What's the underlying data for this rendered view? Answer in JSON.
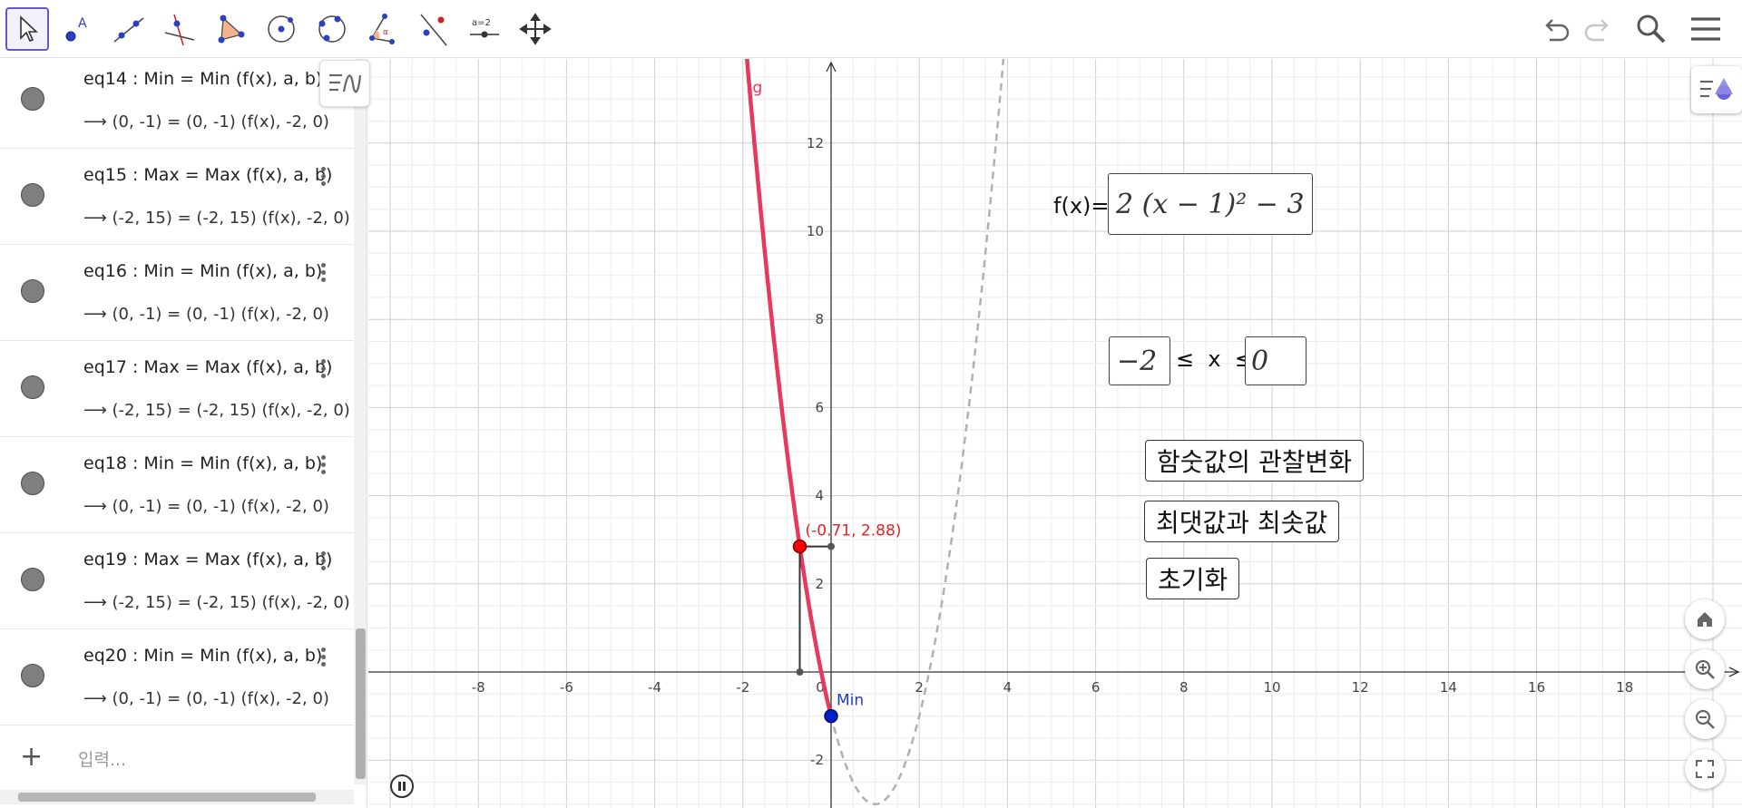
{
  "toolbar": {
    "tools": [
      "move-tool",
      "point-tool",
      "line-tool",
      "perpendicular-tool",
      "polygon-tool",
      "circle-tool",
      "ellipse-tool",
      "angle-tool",
      "reflect-tool",
      "slider-tool",
      "move-graphics-tool"
    ],
    "slider_label": "a=2",
    "active_tool": "move-tool",
    "right_icons": [
      "undo-icon",
      "redo-icon",
      "search-icon",
      "menu-icon"
    ]
  },
  "algebra": {
    "rows": [
      {
        "def": "eq14 : Min  =  Min (f(x), a, b)",
        "val": "⟶ (0, -1)  =  (0, -1) (f(x), -2, 0)"
      },
      {
        "def": "eq15 : Max  =  Max (f(x), a, b)",
        "val": "⟶ (-2, 15)  =  (-2, 15) (f(x), -2, 0)"
      },
      {
        "def": "eq16 : Min  =  Min (f(x), a, b)",
        "val": "⟶ (0, -1)  =  (0, -1) (f(x), -2, 0)"
      },
      {
        "def": "eq17 : Max  =  Max (f(x), a, b)",
        "val": "⟶ (-2, 15)  =  (-2, 15) (f(x), -2, 0)"
      },
      {
        "def": "eq18 : Min  =  Min (f(x), a, b)",
        "val": "⟶ (0, -1)  =  (0, -1) (f(x), -2, 0)"
      },
      {
        "def": "eq19 : Max  =  Max (f(x), a, b)",
        "val": "⟶ (-2, 15)  =  (-2, 15) (f(x), -2, 0)"
      },
      {
        "def": "eq20 : Min  =  Min (f(x), a, b)",
        "val": "⟶ (0, -1)  =  (0, -1) (f(x), -2, 0)"
      }
    ],
    "input_placeholder": "입력..."
  },
  "graphics": {
    "fx_label": "f(x)=",
    "fx_expr": "2 (x − 1)² − 3",
    "lower_bound": "−2",
    "ineq_label": "≤  x  ≤",
    "upper_bound": "0",
    "button_observe": "함숫값의 관찰변화",
    "button_maxmin": "최댓값과 최솟값",
    "button_reset": "초기화",
    "curve_label": "g",
    "point_label": "(-0.71, 2.88)",
    "min_label": "Min",
    "x_ticks": [
      "-8",
      "-6",
      "-4",
      "-2",
      "0",
      "2",
      "4",
      "6",
      "8",
      "10",
      "12",
      "14",
      "16",
      "18"
    ],
    "y_ticks": [
      "12",
      "10",
      "8",
      "6",
      "4",
      "2",
      "-2"
    ],
    "colors": {
      "curve": "#e8385c",
      "dashed": "#b0b0b0",
      "point_red": "#ff0000",
      "min_point": "#0020c8",
      "min_label": "#1f3cd0",
      "point_label": "#e82020"
    }
  },
  "fab_icons": [
    "home-icon",
    "zoom-in-icon",
    "zoom-out-icon",
    "fullscreen-icon"
  ]
}
